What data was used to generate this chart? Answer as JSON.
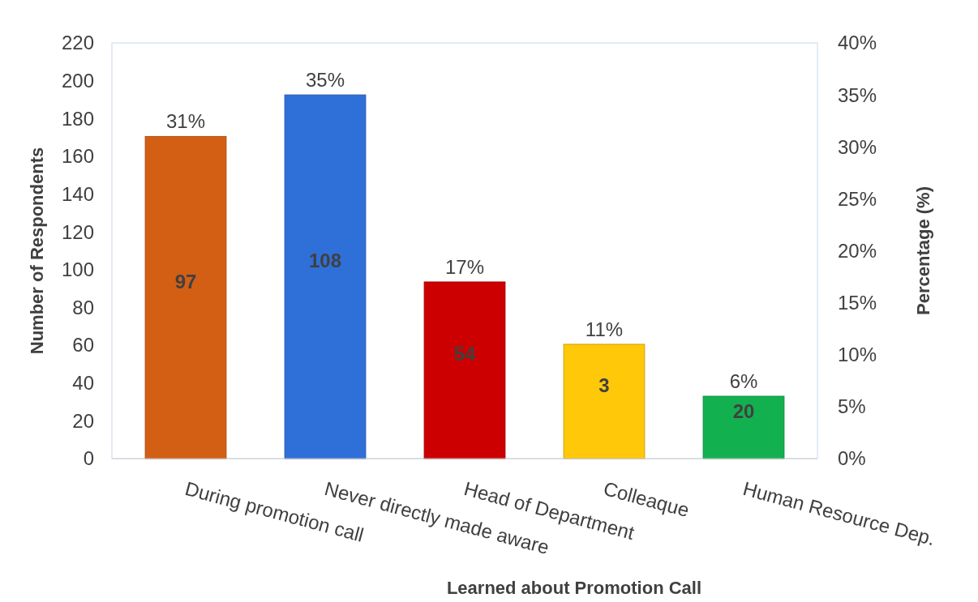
{
  "chart_data": {
    "type": "bar",
    "xlabel": "Learned about Promotion Call",
    "ylabel": "Number of Respondents",
    "y2label": "Percentage (%)",
    "categories": [
      "During promotion call",
      "Never directly made aware",
      "Head of Department",
      "Colleaque",
      "Human Resource Dep."
    ],
    "series": [
      {
        "axis": "y2",
        "colors": [
          "#d35f14",
          "#2f6fd8",
          "#cc0000",
          "#ffc90a",
          "#13b04f"
        ],
        "values": [
          31,
          35,
          17,
          11,
          6
        ],
        "value_labels": [
          "31%",
          "35%",
          "17%",
          "11%",
          "6%"
        ]
      }
    ],
    "annotations": [
      "97",
      "108",
      "54",
      "3",
      "20"
    ],
    "ylim": [
      0,
      220
    ],
    "yticks": [
      0,
      20,
      40,
      60,
      80,
      100,
      120,
      140,
      160,
      180,
      200,
      220
    ],
    "y2lim": [
      0,
      40
    ],
    "y2ticks": [
      {
        "value": 0,
        "label": "0%"
      },
      {
        "value": 5,
        "label": "5%"
      },
      {
        "value": 10,
        "label": "10%"
      },
      {
        "value": 15,
        "label": "15%"
      },
      {
        "value": 20,
        "label": "20%"
      },
      {
        "value": 25,
        "label": "25%"
      },
      {
        "value": 30,
        "label": "30%"
      },
      {
        "value": 35,
        "label": "35%"
      },
      {
        "value": 40,
        "label": "40%"
      }
    ],
    "grid": false
  }
}
